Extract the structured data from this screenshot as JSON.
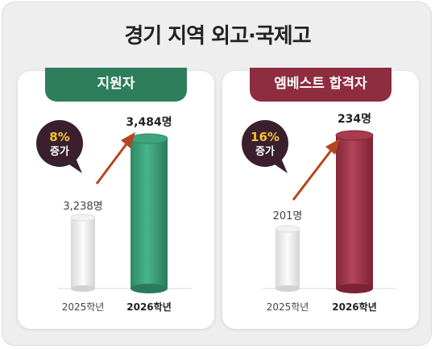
{
  "title": "경기 지역 외고·국제고",
  "colors": {
    "green": "#2e7d5b",
    "maroon": "#8e2c40",
    "badge": "#3a1f2e",
    "badge_text": "#f6c52b",
    "arrow": "#b5461f"
  },
  "chart_data": [
    {
      "type": "bar",
      "title": "지원자",
      "categories": [
        "2025학년",
        "2026학년"
      ],
      "values": [
        3238,
        3484
      ],
      "value_labels": [
        "3,238명",
        "3,484명"
      ],
      "badge": {
        "pct": "8%",
        "label": "증가"
      },
      "highlight_color": "#3c9d79"
    },
    {
      "type": "bar",
      "title": "엠베스트 합격자",
      "categories": [
        "2025학년",
        "2026학년"
      ],
      "values": [
        201,
        234
      ],
      "value_labels": [
        "201명",
        "234명"
      ],
      "badge": {
        "pct": "16%",
        "label": "증가"
      },
      "highlight_color": "#9c3448"
    }
  ]
}
